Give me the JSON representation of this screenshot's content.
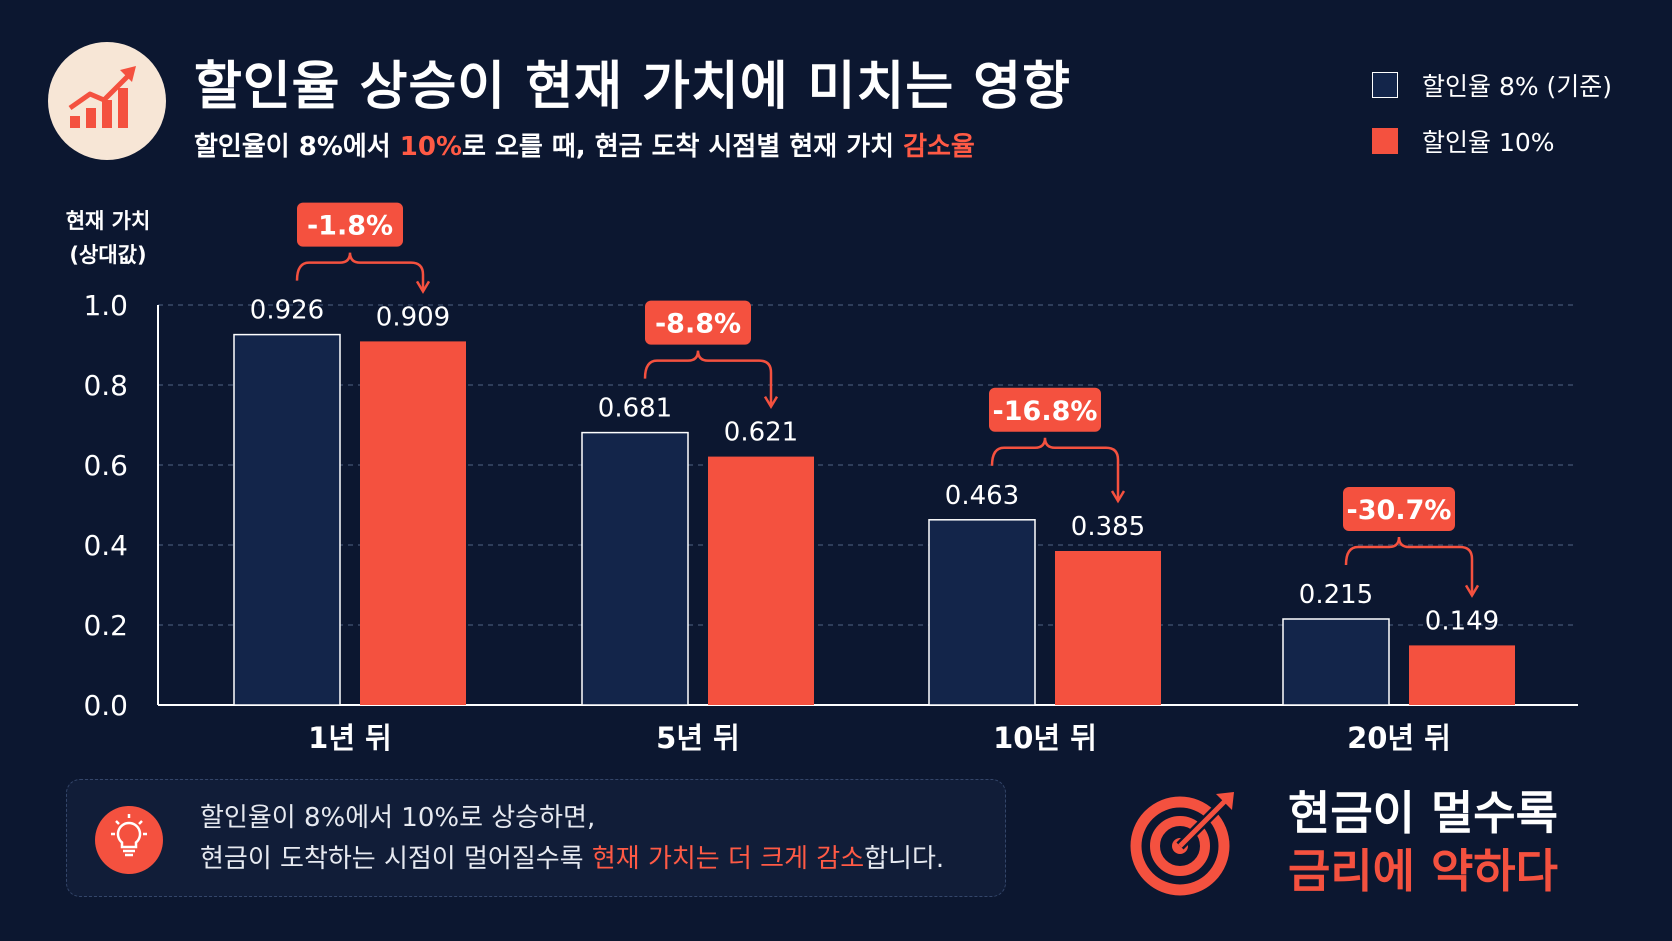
{
  "header": {
    "title": "할인율 상승이 현재 가치에 미치는 영향",
    "subtitle_prefix": "할인율이 8%에서 ",
    "subtitle_highlight1": "10%",
    "subtitle_middle": "로 오를 때, 현금 도착 시점별 현재 가치 ",
    "subtitle_highlight2": "감소율",
    "icon": "growth-chart-icon"
  },
  "legend": [
    {
      "label": "할인율 8% (기준)",
      "color": "#13254a"
    },
    {
      "label": "할인율 10%",
      "color": "#f4513f"
    }
  ],
  "chart_data": {
    "type": "bar",
    "ylabel_line1": "현재 가치",
    "ylabel_line2": "(상대값)",
    "ylim": [
      0,
      1.0
    ],
    "yticks": [
      "0.0",
      "0.2",
      "0.4",
      "0.6",
      "0.8",
      "1.0"
    ],
    "grid": true,
    "legend_position": "top-right",
    "categories": [
      "1년 뒤",
      "5년 뒤",
      "10년 뒤",
      "20년 뒤"
    ],
    "series": [
      {
        "name": "할인율 8% (기준)",
        "values": [
          0.926,
          0.681,
          0.463,
          0.215
        ],
        "labels": [
          "0.926",
          "0.681",
          "0.463",
          "0.215"
        ],
        "color": "#13254a"
      },
      {
        "name": "할인율 10%",
        "values": [
          0.909,
          0.621,
          0.385,
          0.149
        ],
        "labels": [
          "0.909",
          "0.621",
          "0.385",
          "0.149"
        ],
        "color": "#f4513f"
      }
    ],
    "changes": [
      "-1.8%",
      "-8.8%",
      "-16.8%",
      "-30.7%"
    ]
  },
  "callout": {
    "line1": "할인율이 8%에서 10%로 상승하면,",
    "line2_prefix": "현금이 도착하는 시점이 멀어질수록 ",
    "line2_highlight": "현재 가치는 더 크게 감소",
    "line2_suffix": "합니다.",
    "icon": "lightbulb-icon"
  },
  "slogan": {
    "line1": "현금이 멀수록",
    "line2": "금리에 약하다",
    "icon": "target-icon"
  },
  "colors": {
    "background": "#0c1730",
    "navy": "#13254a",
    "accent": "#f4513f"
  }
}
